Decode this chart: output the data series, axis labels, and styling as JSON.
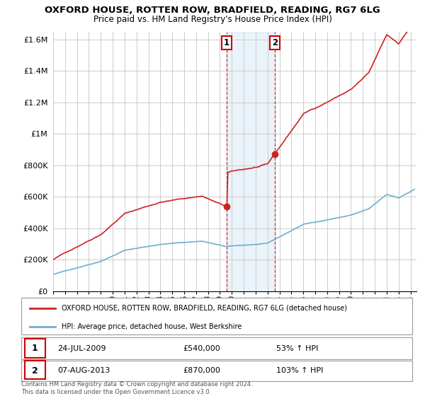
{
  "title": "OXFORD HOUSE, ROTTEN ROW, BRADFIELD, READING, RG7 6LG",
  "subtitle": "Price paid vs. HM Land Registry's House Price Index (HPI)",
  "ylabel_ticks": [
    "£0",
    "£200K",
    "£400K",
    "£600K",
    "£800K",
    "£1M",
    "£1.2M",
    "£1.4M",
    "£1.6M"
  ],
  "ylabel_values": [
    0,
    200000,
    400000,
    600000,
    800000,
    1000000,
    1200000,
    1400000,
    1600000
  ],
  "ylim": [
    0,
    1650000
  ],
  "xlim_start": 1995.0,
  "xlim_end": 2025.5,
  "hpi_color": "#6baed6",
  "price_color": "#cc2222",
  "marker1_x": 2009.56,
  "marker1_y": 540000,
  "marker2_x": 2013.6,
  "marker2_y": 870000,
  "sale1_date": "24-JUL-2009",
  "sale1_price": "£540,000",
  "sale1_hpi": "53% ↑ HPI",
  "sale2_date": "07-AUG-2013",
  "sale2_price": "£870,000",
  "sale2_hpi": "103% ↑ HPI",
  "legend_line1": "OXFORD HOUSE, ROTTEN ROW, BRADFIELD, READING, RG7 6LG (detached house)",
  "legend_line2": "HPI: Average price, detached house, West Berkshire",
  "footer": "Contains HM Land Registry data © Crown copyright and database right 2024.\nThis data is licensed under the Open Government Licence v3.0.",
  "background_color": "#ffffff",
  "grid_color": "#cccccc",
  "shaded_region_color": "#d6e8f5",
  "shaded_alpha": 0.5,
  "sale1_box_color": "#cc0000",
  "sale2_box_color": "#cc0000"
}
